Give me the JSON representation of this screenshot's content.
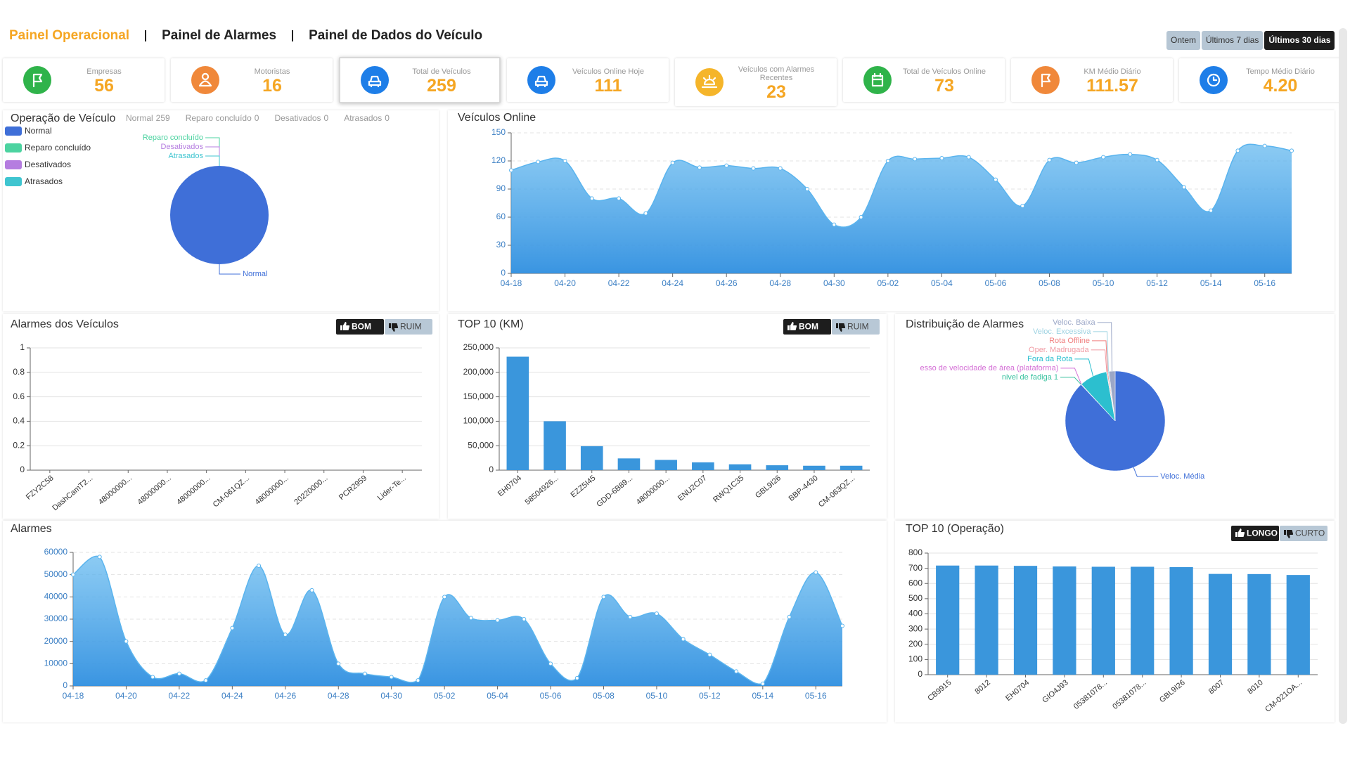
{
  "nav": {
    "tabs": [
      "Painel Operacional",
      "Painel de Alarmes",
      "Painel de Dados do Veículo"
    ],
    "active": 0
  },
  "range_buttons": {
    "labels": [
      "Ontem",
      "Últimos 7 dias",
      "Últimos 30 dias"
    ],
    "active": 2
  },
  "kpi_selected": 2,
  "kpis": [
    {
      "label": "Empresas",
      "value": 56,
      "color": "#2fb34a"
    },
    {
      "label": "Motoristas",
      "value": 16,
      "color": "#f0883a"
    },
    {
      "label": "Total de Veículos",
      "value": 259,
      "color": "#1e7ee8"
    },
    {
      "label": "Veículos Online Hoje",
      "value": 111,
      "color": "#1e7ee8"
    },
    {
      "label": "Veículos com Alarmes Recentes",
      "value": 23,
      "color": "#f5b52a"
    },
    {
      "label": "Total de Veículos Online",
      "value": 73,
      "color": "#2fb34a"
    },
    {
      "label": "KM Médio Diário",
      "value": 111.57,
      "color": "#f0883a"
    },
    {
      "label": "Tempo Médio Diário",
      "value": "4.20",
      "color": "#1e7ee8"
    }
  ],
  "chart_data": [
    {
      "type": "pie",
      "title": "Operação de Veículo",
      "legend": "top-left",
      "categories": [
        "Normal",
        "Reparo concluído",
        "Desativados",
        "Atrasados"
      ],
      "values": [
        259,
        0,
        0,
        0
      ],
      "colors": [
        "#3f6fd8",
        "#4cd3a0",
        "#b57de0",
        "#3fc5d0"
      ]
    },
    {
      "type": "area",
      "title": "Veículos Online",
      "color": "#5ab4ee",
      "grid": true,
      "categories": [
        "04-18",
        null,
        "04-20",
        null,
        "04-22",
        null,
        "04-24",
        null,
        "04-26",
        null,
        "04-28",
        null,
        "04-30",
        null,
        "05-02",
        null,
        "05-04",
        null,
        "05-06",
        null,
        "05-08",
        null,
        "05-10",
        null,
        "05-12",
        null,
        "05-14",
        null,
        "05-16",
        null
      ],
      "values": [
        110,
        119,
        120,
        80,
        80,
        64,
        118,
        113,
        115,
        112,
        112,
        90,
        52,
        60,
        120,
        122,
        123,
        124,
        100,
        72,
        121,
        118,
        124,
        127,
        121,
        92,
        67,
        131,
        136,
        131
      ],
      "ylim": [
        0,
        150
      ],
      "yticks": [
        0,
        30,
        60,
        90,
        120,
        150
      ]
    },
    {
      "type": "bar",
      "title": "Alarmes dos Veículos",
      "buttons": [
        "BOM",
        "RUIM"
      ],
      "color": "#3a96dc",
      "grid": true,
      "categories": [
        "FZY2C58",
        "DashCamT2...",
        "48000000...",
        "48000000...",
        "48000000...",
        "CM-061QZ...",
        "48000000...",
        "20220000...",
        "PCR2959",
        "Lider-Te..."
      ],
      "values": [
        0,
        0,
        0,
        0,
        0,
        0,
        0,
        0,
        0,
        0
      ],
      "ylim": [
        0,
        1
      ],
      "yticks": [
        0,
        0.2,
        0.4,
        0.6,
        0.8,
        1
      ]
    },
    {
      "type": "bar",
      "title": "TOP 10 (KM)",
      "buttons": [
        "BOM",
        "RUIM"
      ],
      "color": "#3a96dc",
      "grid": true,
      "categories": [
        "EH0704",
        "58504926...",
        "EZZ5I45",
        "GDD-6B89...",
        "48000000...",
        "ENU2C07",
        "RWQ1C35",
        "GBL9I26",
        "BBP-4430",
        "CM-063QZ..."
      ],
      "values": [
        232000,
        100000,
        49000,
        24000,
        21000,
        16000,
        12000,
        10000,
        9000,
        9000
      ],
      "ylim": [
        0,
        250000
      ],
      "yticks": [
        0,
        {
          "value": 50000,
          "label": "50,000"
        },
        {
          "value": 100000,
          "label": "100,000"
        },
        {
          "value": 150000,
          "label": "150,000"
        },
        {
          "value": 200000,
          "label": "200,000"
        },
        {
          "value": 250000,
          "label": "250,000"
        }
      ]
    },
    {
      "type": "pie",
      "title": "Distribuição de Alarmes",
      "categories": [
        "Veloc. Média",
        "nivel de fadiga 1",
        "esso de velocidade de área (plataforma)",
        "Fora da Rota",
        "Oper. Madrugada",
        "Rota Offline",
        "Veloc. Excessiva",
        "Veloc. Baixa"
      ],
      "values": [
        88,
        0.1,
        0.1,
        9,
        0.2,
        0.3,
        0.3,
        2
      ],
      "colors": [
        "#3f6fd8",
        "#3cc3a0",
        "#d46fd6",
        "#2cbfcf",
        "#f19ca5",
        "#f07f7f",
        "#9fd3e2",
        "#9ba7c7"
      ]
    },
    {
      "type": "area",
      "title": "Alarmes",
      "color": "#5ab4ee",
      "grid": true,
      "categories": [
        "04-18",
        null,
        "04-20",
        null,
        "04-22",
        null,
        "04-24",
        null,
        "04-26",
        null,
        "04-28",
        null,
        "04-30",
        null,
        "05-02",
        null,
        "05-04",
        null,
        "05-06",
        null,
        "05-08",
        null,
        "05-10",
        null,
        "05-12",
        null,
        "05-14",
        null,
        "05-16",
        null
      ],
      "values": [
        50000,
        58000,
        20000,
        4000,
        5500,
        2500,
        26000,
        54000,
        23000,
        43000,
        10000,
        5500,
        4000,
        2500,
        40000,
        30500,
        29500,
        30000,
        10000,
        3500,
        40000,
        31000,
        32500,
        21000,
        14000,
        6500,
        1000,
        31000,
        51000,
        27000
      ],
      "ylim": [
        0,
        60000
      ],
      "yticks": [
        0,
        10000,
        20000,
        30000,
        40000,
        50000,
        60000
      ]
    },
    {
      "type": "bar",
      "title": "TOP 10 (Operação)",
      "buttons": [
        "LONGO",
        "CURTO"
      ],
      "color": "#3a96dc",
      "grid": true,
      "categories": [
        "CB9915",
        "8012",
        "EH0704",
        "GIO4J93",
        "05381078...",
        "05381078...",
        "GBL9I26",
        "8007",
        "8010",
        "CM-021OA..."
      ],
      "values": [
        718,
        718,
        716,
        712,
        710,
        710,
        708,
        663,
        662,
        656
      ],
      "ylim": [
        0,
        800
      ],
      "yticks": [
        0,
        100,
        200,
        300,
        400,
        500,
        600,
        700,
        800
      ]
    }
  ]
}
